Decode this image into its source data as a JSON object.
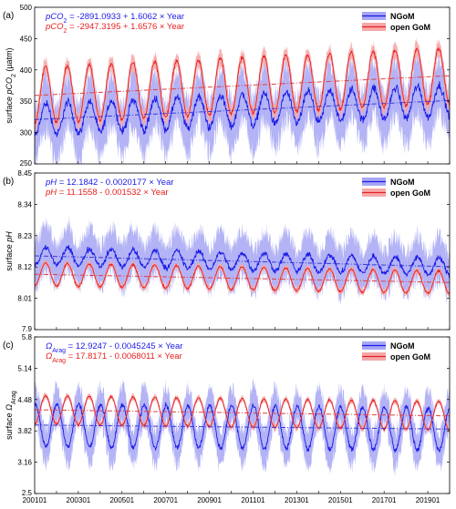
{
  "colors": {
    "ngom_line": "#1a1ae6",
    "ngom_band": "#a6a6f5",
    "open_line": "#e62020",
    "open_band": "#f5a8a8",
    "trend_ngom": "#3c3cd8",
    "trend_open": "#e04040"
  },
  "x_ticks": [
    "200101",
    "200301",
    "200501",
    "200701",
    "200901",
    "201101",
    "201301",
    "201501",
    "201701",
    "201901"
  ],
  "chart_data": [
    {
      "type": "line",
      "panel_label": "(a)",
      "ylabel": "surface pCO2 (µatm)",
      "ylabel_main": "surface ",
      "ylabel_var": "pCO",
      "ylabel_sub": "2",
      "ylabel_unit": " (µatm)",
      "ylim": [
        250,
        500
      ],
      "yticks": [
        "250",
        "300",
        "350",
        "400",
        "450",
        "500"
      ],
      "x_range": [
        2001,
        2020
      ],
      "grid": false,
      "legend_position": "top-right",
      "legend": [
        "NGoM",
        "open GoM"
      ],
      "equations": [
        {
          "var": "pCO",
          "sub": "2",
          "sup": "",
          "expr": " = -2891.0933 + 1.6062 × Year"
        },
        {
          "var": "pCO",
          "sub": "2",
          "sup": "",
          "expr": " = -2947.3195 + 1.6576 × Year"
        }
      ],
      "series": [
        {
          "name": "NGoM",
          "trend": [
            -2891.0933,
            1.6062
          ],
          "mean": 336,
          "amp": 25,
          "band": 50,
          "noise": 10
        },
        {
          "name": "open GoM",
          "trend": [
            -2947.3195,
            1.6576
          ],
          "mean": 375,
          "amp": 45,
          "band": 14,
          "noise": 5
        }
      ]
    },
    {
      "type": "line",
      "panel_label": "(b)",
      "ylabel": "surface pH",
      "ylabel_main": "surface ",
      "ylabel_var": "pH",
      "ylabel_sub": "",
      "ylabel_unit": "",
      "ylim": [
        7.9,
        8.45
      ],
      "yticks": [
        "7.9",
        "8.01",
        "8.12",
        "8.23",
        "8.34",
        "8.45"
      ],
      "x_range": [
        2001,
        2020
      ],
      "grid": false,
      "legend_position": "top-right",
      "legend": [
        "NGoM",
        "open GoM"
      ],
      "equations": [
        {
          "var": "pH",
          "sub": "",
          "sup": "",
          "expr": " = 12.1842 - 0.0020177 × Year"
        },
        {
          "var": "pH",
          "sub": "",
          "sup": "",
          "expr": " = 11.1558 - 0.001532 × Year"
        }
      ],
      "series": [
        {
          "name": "NGoM",
          "trend": [
            12.1842,
            -0.0020177
          ],
          "mean": 8.14,
          "amp": 0.03,
          "band": 0.09,
          "noise": 0.015
        },
        {
          "name": "open GoM",
          "trend": [
            11.1558,
            -0.001532
          ],
          "mean": 8.08,
          "amp": 0.04,
          "band": 0.012,
          "noise": 0.005
        }
      ]
    },
    {
      "type": "line",
      "panel_label": "(c)",
      "ylabel": "surface ΩArag",
      "ylabel_main": "surface ",
      "ylabel_var": "Ω",
      "ylabel_sub": "Arag",
      "ylabel_unit": "",
      "ylim": [
        2.5,
        5.8
      ],
      "yticks": [
        "2.5",
        "3.16",
        "3.82",
        "4.48",
        "5.14",
        "5.8"
      ],
      "x_range": [
        2001,
        2020
      ],
      "grid": false,
      "legend_position": "top-right",
      "legend": [
        "NGoM",
        "open GoM"
      ],
      "equations": [
        {
          "var": "Ω",
          "sub": "Arag",
          "sup": "",
          "expr": " = 12.9247 - 0.0045245 × Year"
        },
        {
          "var": "Ω",
          "sub": "Arag",
          "sup": "",
          "expr": " = 17.8171 - 0.0068011 × Year"
        }
      ],
      "series": [
        {
          "name": "NGoM",
          "trend": [
            12.9247,
            -0.0045245
          ],
          "mean": 3.9,
          "amp": 0.45,
          "band": 0.45,
          "noise": 0.08
        },
        {
          "name": "open GoM",
          "trend": [
            17.8171,
            -0.0068011
          ],
          "mean": 4.2,
          "amp": 0.3,
          "band": 0.07,
          "noise": 0.03
        }
      ]
    }
  ]
}
